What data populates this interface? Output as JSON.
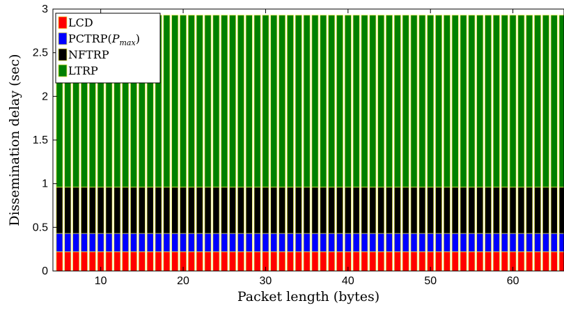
{
  "chart_data": {
    "type": "bar",
    "stacked": true,
    "x": [
      5,
      6,
      7,
      8,
      9,
      10,
      11,
      12,
      13,
      14,
      15,
      16,
      17,
      18,
      19,
      20,
      21,
      22,
      23,
      24,
      25,
      26,
      27,
      28,
      29,
      30,
      31,
      32,
      33,
      34,
      35,
      36,
      37,
      38,
      39,
      40,
      41,
      42,
      43,
      44,
      45,
      46,
      47,
      48,
      49,
      50,
      51,
      52,
      53,
      54,
      55,
      56,
      57,
      58,
      59,
      60,
      61,
      62,
      63,
      64,
      65,
      66
    ],
    "series": [
      {
        "name": "LCD",
        "color": "#ff0000",
        "value": 0.22
      },
      {
        "name": "PCTRP",
        "name_sub": "max",
        "color": "#0000ff",
        "value": 0.21
      },
      {
        "name": "NFTRP",
        "color": "#000000",
        "value": 0.53
      },
      {
        "name": "LTRP",
        "color": "#008000",
        "value": 1.97
      }
    ],
    "xlabel": "Packet length (bytes)",
    "ylabel": "Dissemination delay (sec)",
    "xlim": [
      4.2,
      66.2
    ],
    "ylim": [
      0,
      3
    ],
    "xticks": [
      "10",
      "20",
      "30",
      "40",
      "50",
      "60"
    ],
    "xtick_values": [
      10,
      20,
      30,
      40,
      50,
      60
    ],
    "yticks": [
      "0",
      "0.5",
      "1",
      "1.5",
      "2",
      "2.5",
      "3"
    ],
    "ytick_values": [
      0,
      0.5,
      1,
      1.5,
      2,
      2.5,
      3
    ],
    "grid": false,
    "legend_position": "top-left",
    "bar_edge_color": "#e8e84a"
  }
}
